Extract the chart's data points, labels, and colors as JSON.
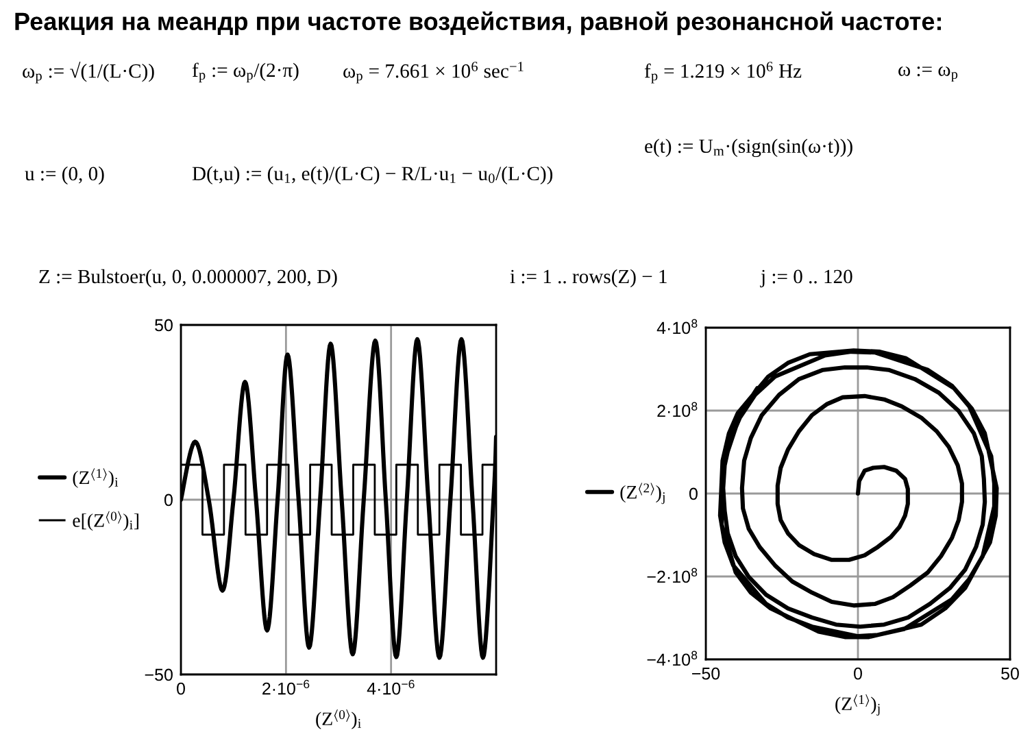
{
  "chart_data": [
    {
      "type": "line",
      "title": "Реакция на меандр при частоте воздействия, равной резонансной частоте:",
      "annotations": [
        "ω$_{p}$ := √(1/(L·C))",
        "f$_{p}$ := ω$_{p}$/(2·π)",
        "ω$_{p}$ = 7.661 × 10$^{6}$ sec$^{−1}$",
        "f$_{p}$ = 1.219 × 10$^{6}$ Hz",
        "ω := ω$_{p}$",
        "u := (0, 0)",
        "D(t,u) := (u$_{1}$, e(t)/(L·C) − R/L·u$_{1}$ − u$_{0}$/(L·C))",
        "e(t) := U$_{m}$·(sign(sin(ω·t)))",
        "Z := Bulstoer(u, 0, 0.000007, 200, D)",
        "i := 1 .. rows(Z) − 1",
        "j := 0 .. 120"
      ],
      "xlabel": "(Z$^{⟨0⟩}$)$_{i}$",
      "series": [
        {
          "name": "(Z$^{⟨1⟩}$)$_{i}$",
          "type": "line",
          "color": "#000000",
          "x": [
            0,
            2.7e-07,
            5.3e-07,
            7.9e-07,
            1e-06,
            1.22e-06,
            1.43e-06,
            1.64e-06,
            1.84e-06,
            2.03e-06,
            2.24e-06,
            2.44e-06,
            2.65e-06,
            2.85e-06,
            3.06e-06,
            3.27e-06,
            3.48e-06,
            3.7e-06,
            3.9e-06,
            4.1e-06,
            4.3e-06,
            4.5e-06,
            4.71e-06,
            4.92e-06,
            5.13e-06,
            5.34e-06,
            5.55e-06,
            5.75e-06,
            5.95e-06,
            6e-06
          ],
          "values": [
            0,
            16.6,
            0,
            -26,
            0,
            33.7,
            0,
            -37.4,
            0,
            41.5,
            0,
            -42.3,
            0,
            44.6,
            0,
            -44.2,
            0,
            45.5,
            0,
            -45,
            0,
            45.9,
            0,
            -45.2,
            0,
            45.9,
            0,
            -45.2,
            0,
            18
          ]
        },
        {
          "name": "e[(Z$^{⟨0⟩}$)$_{i}$]",
          "type": "step",
          "color": "#000000",
          "x": [
            0,
            4.1e-07,
            8.2e-07,
            1.23e-06,
            1.64e-06,
            2.05e-06,
            2.46e-06,
            2.87e-06,
            3.28e-06,
            3.69e-06,
            4.1e-06,
            4.51e-06,
            4.92e-06,
            5.33e-06,
            5.74e-06,
            6e-06
          ],
          "values": [
            10,
            -10,
            10,
            -10,
            10,
            -10,
            10,
            -10,
            10,
            -10,
            10,
            -10,
            10,
            -10,
            10,
            10
          ]
        }
      ],
      "xlim": [
        0,
        6e-06
      ],
      "ylim": [
        -50,
        50
      ],
      "xticks": [
        0,
        {
          "value": 2e-06,
          "label": "2·10$^{−6}$"
        },
        {
          "value": 4e-06,
          "label": "4·10$^{−6}$"
        }
      ],
      "yticks": [
        {
          "value": -50,
          "label": "−50"
        },
        0,
        50
      ],
      "grid": true,
      "legend": "left"
    },
    {
      "type": "line",
      "xlabel": "(Z$^{⟨1⟩}$)$_{j}$",
      "series": [
        {
          "name": "(Z$^{⟨2⟩}$)$_{j}$",
          "type": "line",
          "color": "#000000",
          "x": [
            0,
            0.4,
            2.2,
            5.0,
            8.6,
            12.6,
            15.5,
            16.4,
            16.4,
            15.5,
            13.7,
            10.8,
            6.5,
            2.2,
            -2.9,
            -8.6,
            -14.4,
            -19.4,
            -23.0,
            -25.4,
            -26.4,
            -26.4,
            -25.4,
            -23.0,
            -19.4,
            -15.1,
            -10.1,
            -5.0,
            2.2,
            8.6,
            14.4,
            20.8,
            25.9,
            29.9,
            32.8,
            34.2,
            34.2,
            33.1,
            30.9,
            27.3,
            23.0,
            17.2,
            11.5,
            5.7,
            -1.4,
            -8.6,
            -15.1,
            -21.6,
            -27.3,
            -32.3,
            -35.9,
            -37.8,
            -38.1,
            -37.4,
            -35.2,
            -31.6,
            -25.9,
            -19.4,
            -11.5,
            -4.3,
            2.9,
            10.1,
            18.7,
            26.6,
            33.1,
            38.1,
            40.7,
            41.4,
            41.7,
            41.0,
            38.8,
            35.2,
            30.2,
            23.7,
            16.5,
            8.6,
            0.7,
            -7.2,
            -15.1,
            -23.0,
            -30.2,
            -35.9,
            -40.2,
            -42.8,
            -43.8,
            -44.3,
            -43.8,
            -42.0,
            -38.8,
            -33.8,
            -27.3,
            -10.8,
            -2.2,
            5.7,
            23.0,
            30.9,
            36.6,
            43.8,
            44.8,
            44.8,
            41.0,
            36.6,
            30.9,
            15.1,
            6.5,
            0,
            -15.1,
            -23.0,
            -30.2,
            -41.0,
            -43.8,
            -45.3,
            -44.5,
            -42.4,
            -39.5,
            -29.5,
            -23.0,
            -15.8,
            -1.4,
            7.2,
            15.8,
            31.6,
            37.4,
            41.7,
            45.6,
            45.3,
            43.4,
            35.2,
            28.7,
            20.8,
            3.6,
            -4.3,
            -12.9,
            -28.7,
            -35.2,
            -40.2,
            -44.8,
            -44.8,
            -44.3,
            -38.8,
            -33.1
          ],
          "values": [
            0,
            30000000.0,
            55000000.0,
            62000000.0,
            64000000.0,
            55000000.0,
            35000000.0,
            11000000.0,
            -25000000.0,
            -53000000.0,
            -80000000.0,
            -105000000.0,
            -129000000.0,
            -149000000.0,
            -160000000.0,
            -160000000.0,
            -146000000.0,
            -124000000.0,
            -96000000.0,
            -64000000.0,
            -25000000.0,
            19000000.0,
            62000000.0,
            106000000.0,
            150000000.0,
            189000000.0,
            216000000.0,
            232000000.0,
            235000000.0,
            227000000.0,
            210000000.0,
            183000000.0,
            150000000.0,
            112000000.0,
            68000000.0,
            24000000.0,
            -20000000.0,
            -64000000.0,
            -107000000.0,
            -151000000.0,
            -190000000.0,
            -222000000.0,
            -250000000.0,
            -266000000.0,
            -270000000.0,
            -261000000.0,
            -239000000.0,
            -212000000.0,
            -173000000.0,
            -129000000.0,
            -85000000.0,
            -36000000.0,
            13000000.0,
            79000000.0,
            134000000.0,
            189000000.0,
            238000000.0,
            276000000.0,
            298000000.0,
            304000000.0,
            304000000.0,
            298000000.0,
            276000000.0,
            243000000.0,
            199000000.0,
            145000000.0,
            90000000.0,
            35000000.0,
            -20000000.0,
            -75000000.0,
            -129000000.0,
            -184000000.0,
            -228000000.0,
            -266000000.0,
            -299000000.0,
            -316000000.0,
            -321000000.0,
            -316000000.0,
            -299000000.0,
            -277000000.0,
            -244000000.0,
            -201000000.0,
            -151000000.0,
            -96000000.0,
            -42000000.0,
            13000000.0,
            68000000.0,
            128000000.0,
            183000000.0,
            238000000.0,
            282000000.0,
            333000000.0,
            342000000.0,
            340000000.0,
            298000000.0,
            260000000.0,
            210000000.0,
            90000000.0,
            24000000.0,
            -31000000.0,
            -151000000.0,
            -206000000.0,
            -255000000.0,
            -327000000.0,
            -341000000.0,
            -344000000.0,
            -321000000.0,
            -299000000.0,
            -266000000.0,
            -173000000.0,
            -118000000.0,
            -53000000.0,
            79000000.0,
            145000000.0,
            194000000.0,
            282000000.0,
            315000000.0,
            336000000.0,
            345000000.0,
            342000000.0,
            326000000.0,
            254000000.0,
            205000000.0,
            145000000.0,
            13000000.0,
            -53000000.0,
            -118000000.0,
            -228000000.0,
            -277000000.0,
            -316000000.0,
            -346000000.0,
            -346000000.0,
            -333000000.0,
            -277000000.0,
            -239000000.0,
            -190000000.0,
            -75000000.0,
            2000000.0,
            68000000.0,
            189000000.0,
            254000000.0
          ]
        }
      ],
      "xlim": [
        -50,
        50
      ],
      "ylim": [
        -400000000.0,
        400000000.0
      ],
      "xticks": [
        {
          "value": -50,
          "label": "−50"
        },
        0,
        50
      ],
      "yticks": [
        {
          "value": -400000000.0,
          "label": "−4·10$^{8}$"
        },
        {
          "value": -200000000.0,
          "label": "−2·10$^{8}$"
        },
        0,
        {
          "value": 200000000.0,
          "label": "2·10$^{8}$"
        },
        {
          "value": 400000000.0,
          "label": "4·10$^{8}$"
        }
      ],
      "grid": true,
      "legend": "left"
    }
  ]
}
